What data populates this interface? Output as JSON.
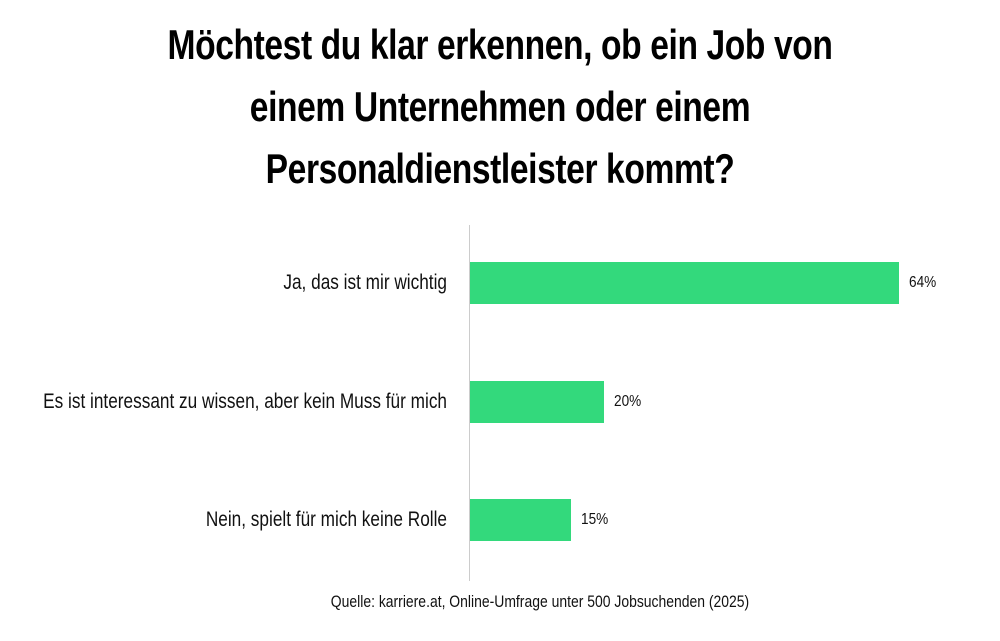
{
  "chart_data": {
    "type": "bar",
    "orientation": "horizontal",
    "title": "Möchtest du klar erkennen, ob ein Job von einem Unternehmen oder einem Personaldienstleister kommt?",
    "categories": [
      "Ja, das ist mir wichtig",
      "Es ist interessant zu wissen, aber kein Muss für mich",
      "Nein, spielt für mich keine Rolle"
    ],
    "values": [
      64,
      20,
      15
    ],
    "value_labels": [
      "64%",
      "20%",
      "15%"
    ],
    "color": "#33d97c",
    "source": "Quelle: karriere.at, Online-Umfrage unter 500 Jobsuchenden (2025)"
  }
}
